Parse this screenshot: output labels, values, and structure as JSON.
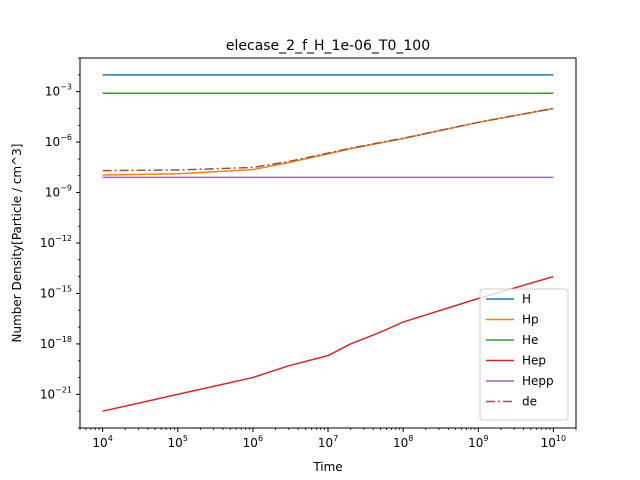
{
  "chart_data": {
    "type": "line",
    "title": "elecase_2_f_H_1e-06_T0_100",
    "xlabel": "Time",
    "ylabel": "Number Density[Particle / cm^3]",
    "xscale": "log",
    "yscale": "log",
    "xlim": [
      5000.0,
      20000000000.0
    ],
    "ylim": [
      1e-23,
      0.1
    ],
    "grid": false,
    "legend_position": "lower-right",
    "x_ticks": [
      {
        "value": 10000.0,
        "base": "10",
        "exp": "4"
      },
      {
        "value": 100000.0,
        "base": "10",
        "exp": "5"
      },
      {
        "value": 1000000.0,
        "base": "10",
        "exp": "6"
      },
      {
        "value": 10000000.0,
        "base": "10",
        "exp": "7"
      },
      {
        "value": 100000000.0,
        "base": "10",
        "exp": "8"
      },
      {
        "value": 1000000000.0,
        "base": "10",
        "exp": "9"
      },
      {
        "value": 10000000000.0,
        "base": "10",
        "exp": "10"
      }
    ],
    "y_ticks": [
      {
        "value": 1e-21,
        "base": "10",
        "exp": "−21"
      },
      {
        "value": 1e-18,
        "base": "10",
        "exp": "−18"
      },
      {
        "value": 1e-15,
        "base": "10",
        "exp": "−15"
      },
      {
        "value": 1e-12,
        "base": "10",
        "exp": "−12"
      },
      {
        "value": 1e-09,
        "base": "10",
        "exp": "−9"
      },
      {
        "value": 1e-06,
        "base": "10",
        "exp": "−6"
      },
      {
        "value": 0.001,
        "base": "10",
        "exp": "−3"
      }
    ],
    "x": [
      10000.0,
      100000.0,
      1000000.0,
      3000000.0,
      10000000.0,
      20000000.0,
      50000000.0,
      100000000.0,
      1000000000.0,
      10000000000.0
    ],
    "series": [
      {
        "name": "H",
        "color": "#1f77b4",
        "dash": "solid",
        "y": [
          0.01,
          0.01,
          0.01,
          0.01,
          0.01,
          0.01,
          0.01,
          0.01,
          0.01,
          0.01
        ]
      },
      {
        "name": "Hp",
        "color": "#ff7f0e",
        "dash": "solid",
        "y": [
          1.1e-08,
          1.3e-08,
          2.3e-08,
          6e-08,
          2e-07,
          4e-07,
          9e-07,
          1.6e-06,
          1.5e-05,
          0.0001
        ]
      },
      {
        "name": "He",
        "color": "#2ca02c",
        "dash": "solid",
        "y": [
          0.0008,
          0.0008,
          0.0008,
          0.0008,
          0.0008,
          0.0008,
          0.0008,
          0.0008,
          0.0008,
          0.0008
        ]
      },
      {
        "name": "Hep",
        "color": "#d62728",
        "dash": "solid",
        "y": [
          1e-22,
          1e-21,
          1e-20,
          5e-20,
          2e-19,
          1e-18,
          5e-18,
          2e-17,
          5e-16,
          1e-14
        ]
      },
      {
        "name": "Hepp",
        "color": "#9467bd",
        "dash": "solid",
        "y": [
          8e-09,
          8e-09,
          8e-09,
          8e-09,
          8e-09,
          8e-09,
          8e-09,
          8e-09,
          8e-09,
          8e-09
        ]
      },
      {
        "name": "de",
        "color": "#8c564b",
        "dash": "dashdot",
        "y": [
          2e-08,
          2.2e-08,
          3.1e-08,
          7e-08,
          2.2e-07,
          4.3e-07,
          9.5e-07,
          1.7e-06,
          1.5e-05,
          0.0001
        ]
      }
    ]
  }
}
